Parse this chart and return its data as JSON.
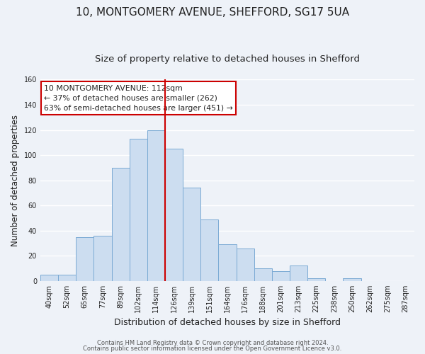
{
  "title": "10, MONTGOMERY AVENUE, SHEFFORD, SG17 5UA",
  "subtitle": "Size of property relative to detached houses in Shefford",
  "xlabel": "Distribution of detached houses by size in Shefford",
  "ylabel": "Number of detached properties",
  "bar_labels": [
    "40sqm",
    "52sqm",
    "65sqm",
    "77sqm",
    "89sqm",
    "102sqm",
    "114sqm",
    "126sqm",
    "139sqm",
    "151sqm",
    "164sqm",
    "176sqm",
    "188sqm",
    "201sqm",
    "213sqm",
    "225sqm",
    "238sqm",
    "250sqm",
    "262sqm",
    "275sqm",
    "287sqm"
  ],
  "bar_values": [
    5,
    5,
    35,
    36,
    90,
    113,
    120,
    105,
    74,
    49,
    29,
    26,
    10,
    8,
    12,
    2,
    0,
    2,
    0,
    0,
    0
  ],
  "bar_color": "#ccddf0",
  "bar_edge_color": "#7aaad4",
  "vline_color": "#cc0000",
  "vline_bar_index": 6,
  "ylim": [
    0,
    160
  ],
  "annotation_title": "10 MONTGOMERY AVENUE: 112sqm",
  "annotation_line1": "← 37% of detached houses are smaller (262)",
  "annotation_line2": "63% of semi-detached houses are larger (451) →",
  "annotation_box_color": "#ffffff",
  "annotation_box_edge": "#cc0000",
  "footer1": "Contains HM Land Registry data © Crown copyright and database right 2024.",
  "footer2": "Contains public sector information licensed under the Open Government Licence v3.0.",
  "background_color": "#eef2f8",
  "grid_color": "#d8dfe8",
  "title_fontsize": 11,
  "subtitle_fontsize": 9.5,
  "ylabel_fontsize": 8.5,
  "xlabel_fontsize": 9,
  "tick_fontsize": 7,
  "footer_fontsize": 6,
  "annotation_fontsize": 7.8
}
